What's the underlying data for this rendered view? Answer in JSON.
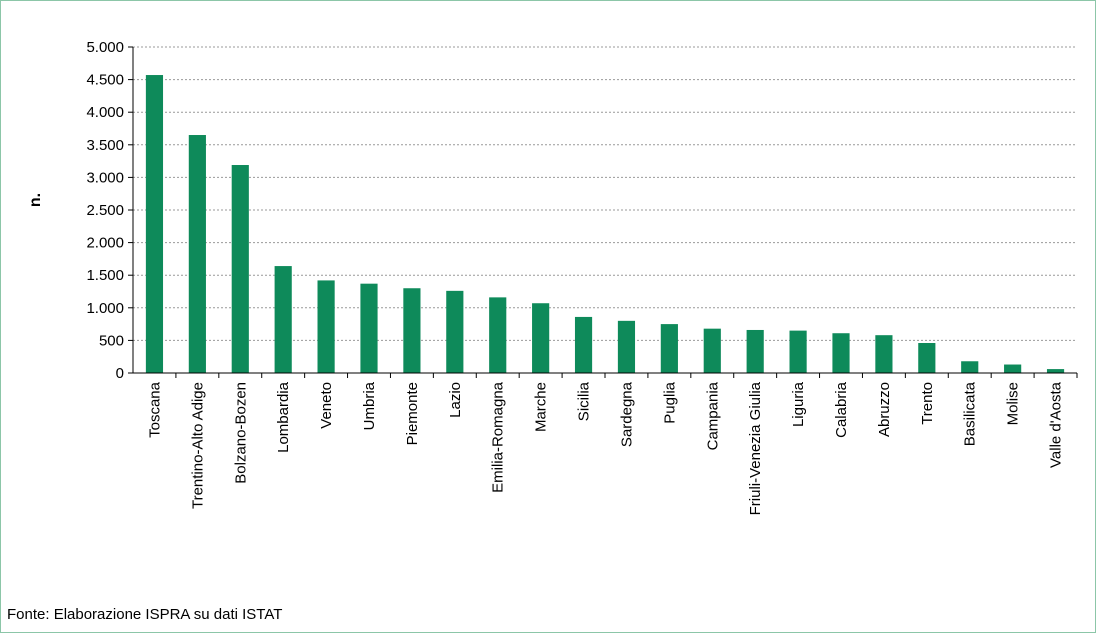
{
  "chart_data": {
    "type": "bar",
    "ylabel": "n.",
    "xlabel": "",
    "ylim": [
      0,
      5000
    ],
    "yticks": [
      0,
      500,
      1000,
      1500,
      2000,
      2500,
      3000,
      3500,
      4000,
      4500,
      5000
    ],
    "ytick_labels": [
      "0",
      "500",
      "1.000",
      "1.500",
      "2.000",
      "2.500",
      "3.000",
      "3.500",
      "4.000",
      "4.500",
      "5.000"
    ],
    "grid": true,
    "bar_color": "#0e8a5a",
    "grid_color": "#999999",
    "categories": [
      "Toscana",
      "Trentino-Alto Adige",
      "Bolzano-Bozen",
      "Lombardia",
      "Veneto",
      "Umbria",
      "Piemonte",
      "Lazio",
      "Emilia-Romagna",
      "Marche",
      "Sicilia",
      "Sardegna",
      "Puglia",
      "Campania",
      "Friuli-Venezia Giulia",
      "Liguria",
      "Calabria",
      "Abruzzo",
      "Trento",
      "Basilicata",
      "Molise",
      "Valle d'Aosta"
    ],
    "values": [
      4570,
      3650,
      3190,
      1640,
      1420,
      1370,
      1300,
      1260,
      1160,
      1070,
      860,
      800,
      750,
      680,
      660,
      650,
      610,
      580,
      460,
      180,
      130,
      60
    ]
  },
  "source_note": "Fonte: Elaborazione ISPRA su dati ISTAT"
}
